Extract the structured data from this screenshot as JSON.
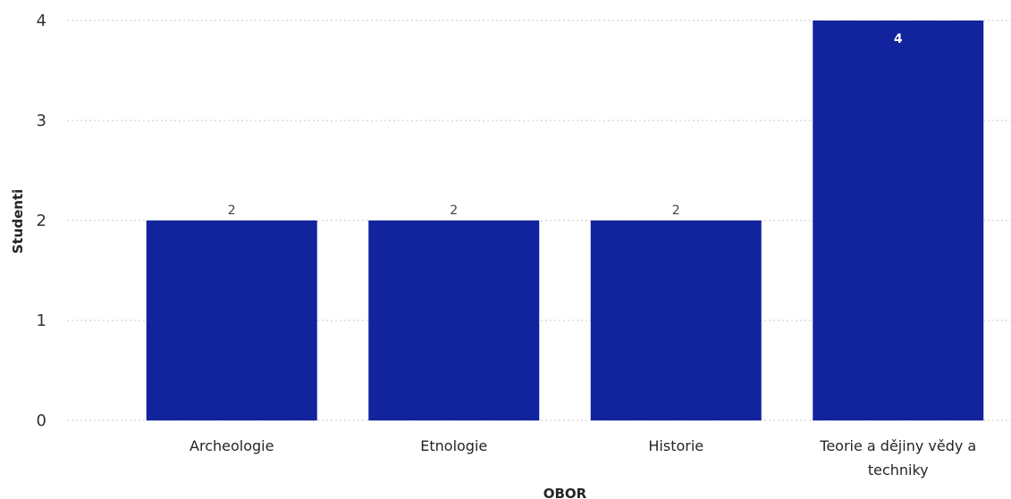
{
  "chart_data": {
    "type": "bar",
    "categories": [
      "Archeologie",
      "Etnologie",
      "Historie",
      "Teorie a dějiny vědy a techniky"
    ],
    "category_label_lines": [
      [
        "Archeologie"
      ],
      [
        "Etnologie"
      ],
      [
        "Historie"
      ],
      [
        "Teorie a dějiny vědy a",
        "techniky"
      ]
    ],
    "values": [
      2,
      2,
      2,
      4
    ],
    "data_labels": [
      "2",
      "2",
      "2",
      "4"
    ],
    "y_ticks": [
      "0",
      "1",
      "2",
      "3",
      "4"
    ],
    "xlabel": "OBOR",
    "ylabel": "Studenti",
    "ylim": [
      0,
      4
    ],
    "grid": true,
    "bar_color": "#12239e"
  }
}
